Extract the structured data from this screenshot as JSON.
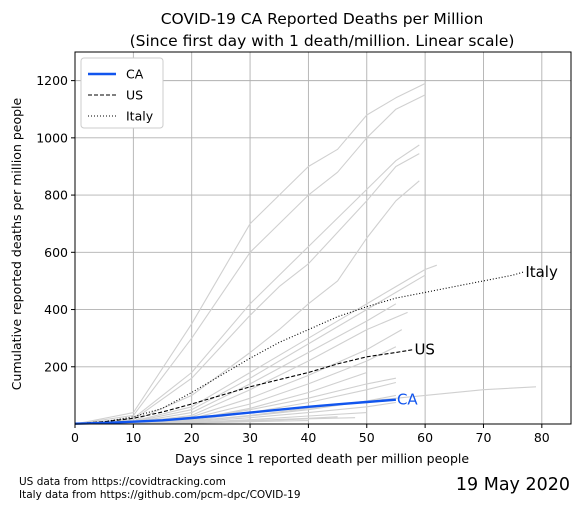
{
  "chart_data": {
    "type": "line",
    "title": "COVID-19 CA Reported Deaths per Million",
    "subtitle": "(Since first day with 1 death/million. Linear scale)",
    "xlabel": "Days since 1 reported death per million people",
    "ylabel": "Cumulative reported deaths per million people",
    "xlim": [
      0,
      85
    ],
    "ylim": [
      0,
      1300
    ],
    "xticks": [
      0,
      10,
      20,
      30,
      40,
      50,
      60,
      70,
      80
    ],
    "yticks": [
      200,
      400,
      600,
      800,
      1000,
      1200
    ],
    "grid": true,
    "legend_position": "top-left",
    "series": [
      {
        "name": "CA",
        "style": "solid",
        "color": "#1155ee",
        "end_label": "CA",
        "x": [
          0,
          5,
          10,
          15,
          20,
          25,
          30,
          35,
          40,
          45,
          50,
          55
        ],
        "y": [
          1,
          4,
          8,
          13,
          21,
          30,
          40,
          50,
          60,
          69,
          77,
          85
        ]
      },
      {
        "name": "US",
        "style": "dashed",
        "color": "#000000",
        "end_label": "US",
        "x": [
          0,
          5,
          10,
          15,
          20,
          25,
          30,
          35,
          40,
          45,
          50,
          55,
          58
        ],
        "y": [
          1,
          8,
          20,
          42,
          70,
          100,
          130,
          155,
          180,
          210,
          235,
          250,
          260
        ]
      },
      {
        "name": "Italy",
        "style": "dotted",
        "color": "#000000",
        "end_label": "Italy",
        "x": [
          0,
          5,
          10,
          15,
          20,
          25,
          30,
          35,
          40,
          45,
          50,
          55,
          60,
          65,
          70,
          75,
          77
        ],
        "y": [
          1,
          8,
          25,
          55,
          110,
          170,
          230,
          285,
          330,
          375,
          410,
          440,
          460,
          480,
          500,
          520,
          532
        ]
      },
      {
        "color": "#d0d0d0",
        "x": [
          0,
          10,
          20,
          30,
          40,
          45,
          50,
          55,
          60
        ],
        "y": [
          0,
          40,
          350,
          700,
          900,
          960,
          1080,
          1140,
          1190
        ]
      },
      {
        "color": "#d0d0d0",
        "x": [
          0,
          10,
          20,
          30,
          40,
          45,
          50,
          55,
          60
        ],
        "y": [
          0,
          30,
          300,
          600,
          800,
          880,
          1000,
          1100,
          1150
        ]
      },
      {
        "color": "#d0d0d0",
        "x": [
          0,
          10,
          20,
          30,
          40,
          50,
          55,
          59
        ],
        "y": [
          0,
          20,
          180,
          420,
          620,
          820,
          920,
          975
        ]
      },
      {
        "color": "#d0d0d0",
        "x": [
          0,
          10,
          20,
          30,
          35,
          40,
          50,
          55,
          59
        ],
        "y": [
          0,
          15,
          160,
          380,
          480,
          560,
          780,
          900,
          945
        ]
      },
      {
        "color": "#d0d0d0",
        "x": [
          0,
          10,
          20,
          30,
          35,
          40,
          45,
          50,
          55,
          59
        ],
        "y": [
          0,
          10,
          100,
          250,
          330,
          420,
          500,
          650,
          780,
          850
        ]
      },
      {
        "color": "#d0d0d0",
        "x": [
          0,
          10,
          20,
          30,
          40,
          50,
          55,
          60,
          62
        ],
        "y": [
          0,
          10,
          60,
          180,
          300,
          420,
          480,
          540,
          555
        ]
      },
      {
        "color": "#d0d0d0",
        "x": [
          0,
          10,
          20,
          30,
          40,
          50,
          55,
          60
        ],
        "y": [
          0,
          8,
          50,
          160,
          280,
          400,
          460,
          520
        ]
      },
      {
        "color": "#d0d0d0",
        "x": [
          0,
          10,
          20,
          30,
          40,
          50,
          55
        ],
        "y": [
          0,
          6,
          40,
          140,
          250,
          360,
          420
        ]
      },
      {
        "color": "#d0d0d0",
        "x": [
          0,
          10,
          20,
          30,
          40,
          50,
          57
        ],
        "y": [
          0,
          5,
          30,
          120,
          220,
          330,
          390
        ]
      },
      {
        "color": "#d0d0d0",
        "x": [
          0,
          10,
          20,
          30,
          40,
          50,
          56
        ],
        "y": [
          0,
          5,
          25,
          90,
          170,
          260,
          330
        ]
      },
      {
        "color": "#d0d0d0",
        "x": [
          0,
          10,
          20,
          30,
          40,
          50,
          55
        ],
        "y": [
          0,
          4,
          20,
          70,
          140,
          220,
          270
        ]
      },
      {
        "color": "#d0d0d0",
        "x": [
          0,
          10,
          20,
          30,
          40,
          50
        ],
        "y": [
          0,
          3,
          15,
          55,
          110,
          180
        ]
      },
      {
        "color": "#d0d0d0",
        "x": [
          0,
          10,
          20,
          30,
          40,
          50,
          55
        ],
        "y": [
          0,
          3,
          15,
          50,
          90,
          140,
          160
        ]
      },
      {
        "color": "#d0d0d0",
        "x": [
          0,
          10,
          20,
          30,
          40,
          50,
          55
        ],
        "y": [
          0,
          3,
          12,
          40,
          75,
          120,
          145
        ]
      },
      {
        "color": "#d0d0d0",
        "x": [
          0,
          10,
          20,
          30,
          40,
          50,
          60,
          70,
          79
        ],
        "y": [
          0,
          2,
          10,
          30,
          55,
          80,
          100,
          120,
          130
        ]
      },
      {
        "color": "#d0d0d0",
        "x": [
          0,
          10,
          20,
          30,
          40,
          50,
          55
        ],
        "y": [
          0,
          2,
          10,
          28,
          50,
          80,
          100
        ]
      },
      {
        "color": "#d0d0d0",
        "x": [
          0,
          10,
          20,
          30,
          40,
          50,
          55
        ],
        "y": [
          0,
          2,
          8,
          22,
          40,
          60,
          75
        ]
      },
      {
        "color": "#d0d0d0",
        "x": [
          0,
          10,
          20,
          30,
          40,
          50
        ],
        "y": [
          0,
          2,
          6,
          15,
          28,
          40
        ]
      },
      {
        "color": "#d0d0d0",
        "x": [
          0,
          10,
          20,
          30,
          40,
          45
        ],
        "y": [
          0,
          1,
          5,
          12,
          20,
          25
        ]
      },
      {
        "color": "#d0d0d0",
        "x": [
          0,
          10,
          20,
          30,
          40
        ],
        "y": [
          0,
          1,
          3,
          8,
          12
        ]
      },
      {
        "color": "#d0d0d0",
        "x": [
          0,
          10,
          20,
          30,
          40,
          48
        ],
        "y": [
          0,
          1,
          4,
          10,
          18,
          22
        ]
      }
    ]
  },
  "footnotes": {
    "line1": "US data from https://covidtracking.com",
    "line2": "Italy data from https://github.com/pcm-dpc/COVID-19"
  },
  "date_stamp": "19 May 2020"
}
